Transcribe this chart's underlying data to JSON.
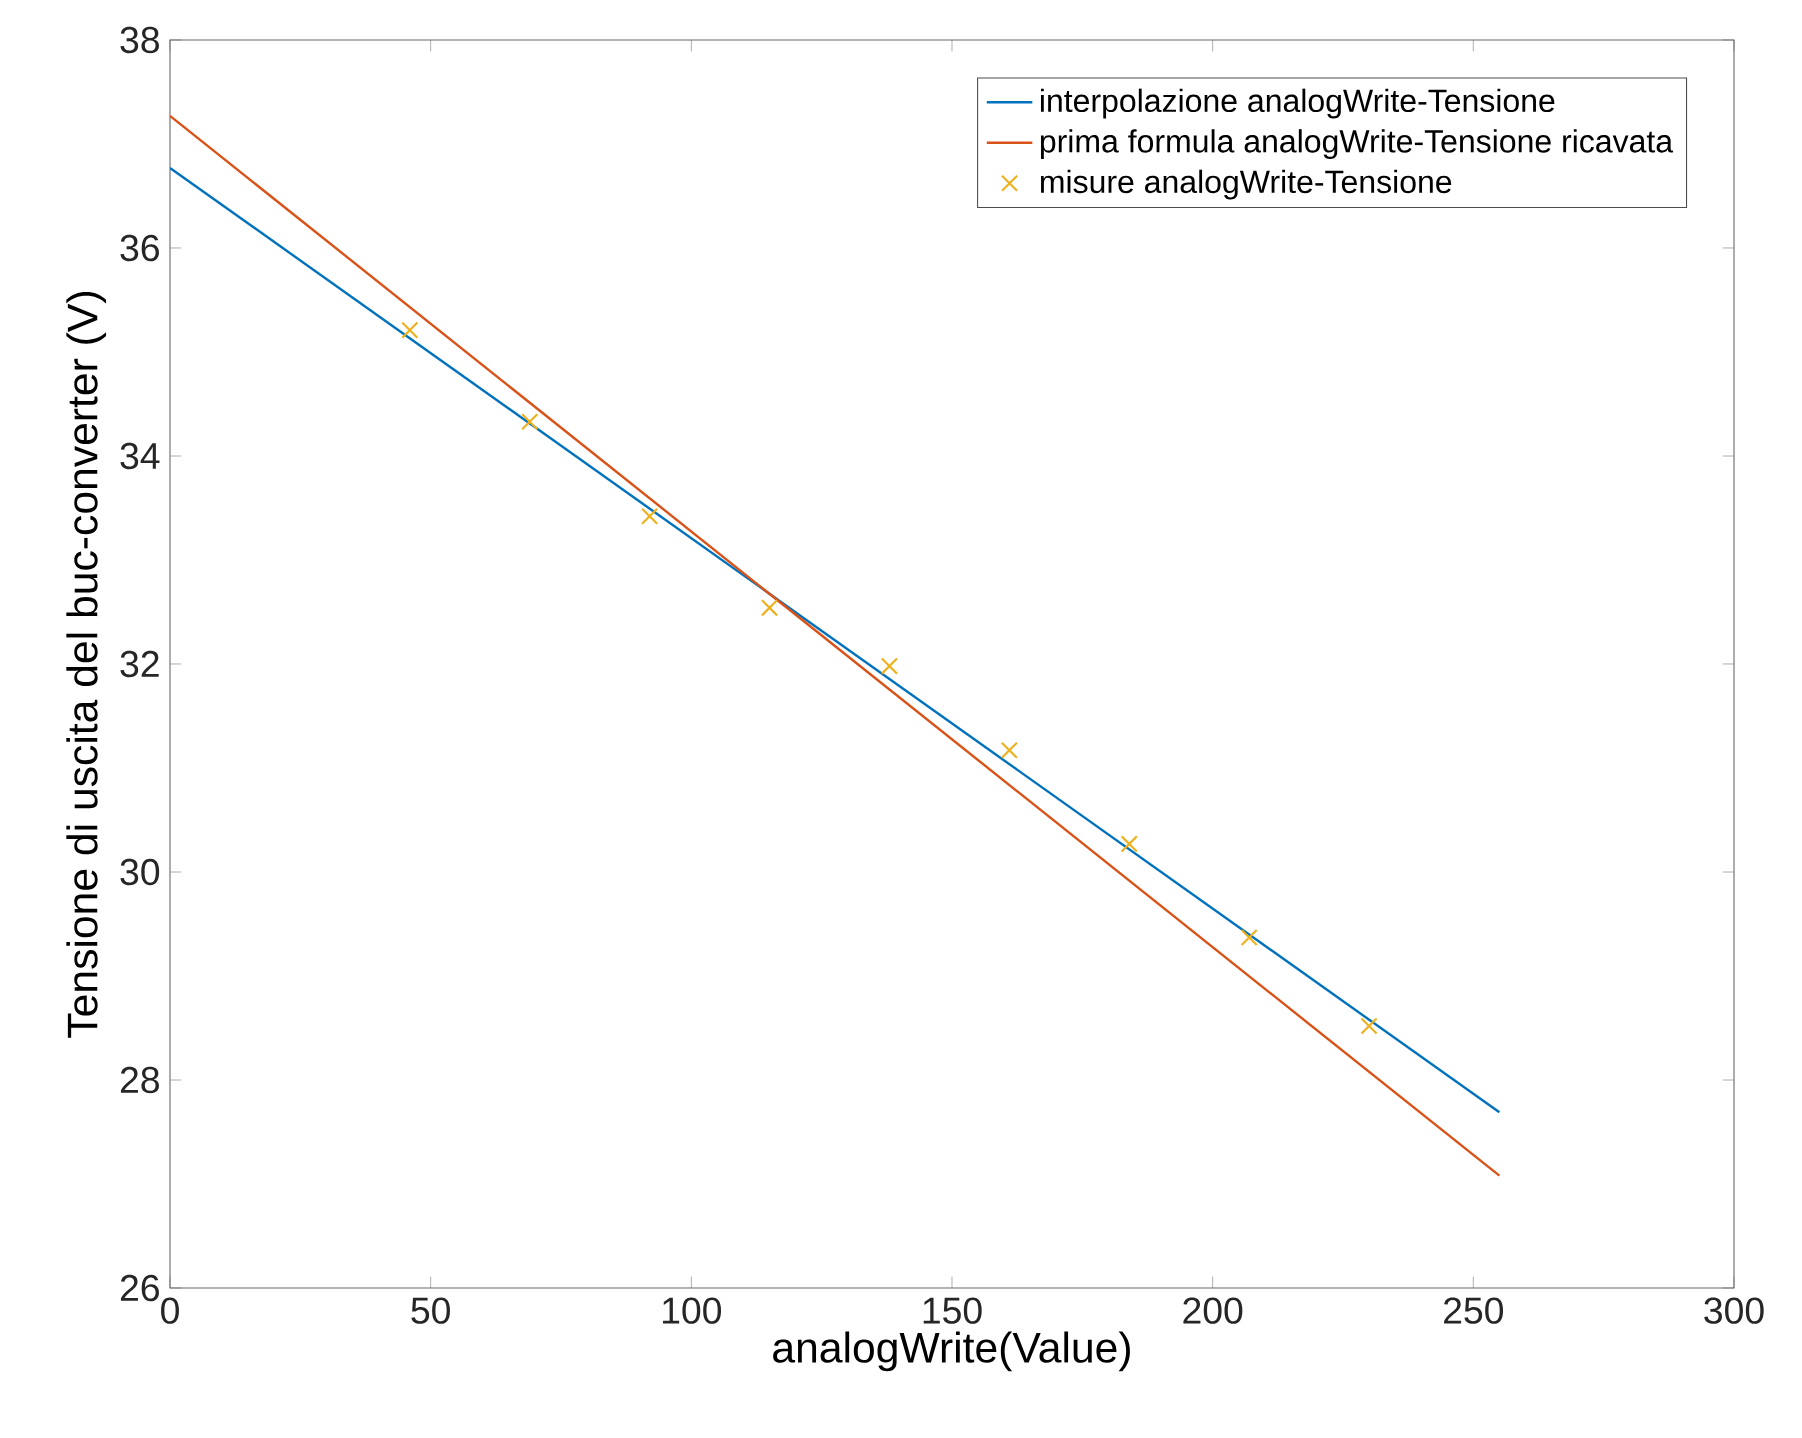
{
  "chart_data": {
    "type": "line",
    "xlabel": "analogWrite(Value)",
    "ylabel": "Tensione di uscita del buc-converter (V)",
    "xlim": [
      0,
      300
    ],
    "ylim": [
      26,
      38
    ],
    "xticks": [
      0,
      50,
      100,
      150,
      200,
      250,
      300
    ],
    "yticks": [
      26,
      28,
      30,
      32,
      34,
      36,
      38
    ],
    "grid": false,
    "legend": "top right",
    "series": [
      {
        "name": "interpolazione analogWrite-Tensione",
        "color": "#0072bd",
        "x": [
          0,
          255
        ],
        "values": [
          36.77,
          27.69
        ],
        "marker": "none",
        "line_style": "solid"
      },
      {
        "name": "prima formula analogWrite-Tensione ricavata",
        "color": "#d95319",
        "x": [
          0,
          255
        ],
        "values": [
          37.27,
          27.08
        ],
        "marker": "none",
        "line_style": "solid"
      },
      {
        "name": "misure analogWrite-Tensione",
        "type": "scatter",
        "color": "#edb120",
        "x": [
          46,
          69,
          92,
          115,
          138,
          161,
          184,
          207,
          230
        ],
        "values": [
          35.21,
          34.33,
          33.42,
          32.54,
          31.98,
          31.17,
          30.27,
          29.37,
          28.52
        ],
        "marker": "cross"
      }
    ]
  }
}
